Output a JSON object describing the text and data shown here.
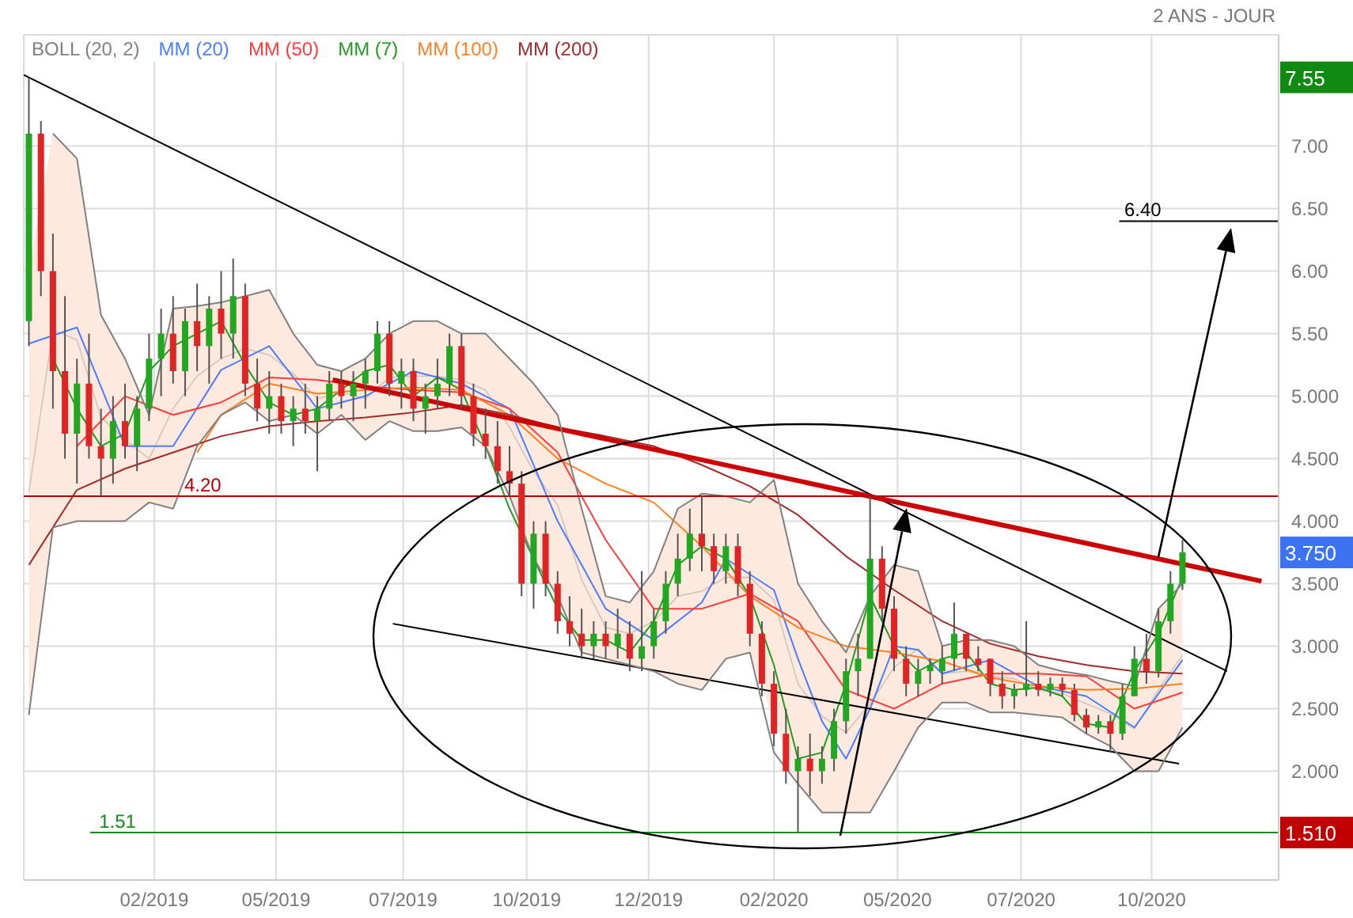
{
  "chart_data": {
    "type": "candlestick",
    "subtitle": "2 ANS - JOUR",
    "x": [
      "2018-12-17",
      "2018-12-24",
      "2018-12-31",
      "2019-01-07",
      "2019-01-14",
      "2019-01-21",
      "2019-01-28",
      "2019-02-04",
      "2019-02-11",
      "2019-02-18",
      "2019-02-25",
      "2019-03-04",
      "2019-03-11",
      "2019-03-18",
      "2019-03-25",
      "2019-04-01",
      "2019-04-08",
      "2019-04-15",
      "2019-04-22",
      "2019-04-29",
      "2019-05-06",
      "2019-05-13",
      "2019-05-20",
      "2019-05-27",
      "2019-06-03",
      "2019-06-10",
      "2019-06-17",
      "2019-06-24",
      "2019-07-01",
      "2019-07-08",
      "2019-07-15",
      "2019-07-22",
      "2019-07-29",
      "2019-08-05",
      "2019-08-12",
      "2019-08-19",
      "2019-08-26",
      "2019-09-02",
      "2019-09-09",
      "2019-09-16",
      "2019-09-23",
      "2019-09-30",
      "2019-10-07",
      "2019-10-14",
      "2019-10-21",
      "2019-10-28",
      "2019-11-04",
      "2019-11-11",
      "2019-11-18",
      "2019-11-25",
      "2019-12-02",
      "2019-12-09",
      "2019-12-16",
      "2019-12-23",
      "2019-12-30",
      "2020-01-06",
      "2020-01-13",
      "2020-01-20",
      "2020-01-27",
      "2020-02-03",
      "2020-02-10",
      "2020-02-17",
      "2020-02-24",
      "2020-03-02",
      "2020-03-09",
      "2020-03-16",
      "2020-03-23",
      "2020-03-30",
      "2020-04-06",
      "2020-04-13",
      "2020-04-20",
      "2020-04-27",
      "2020-05-04",
      "2020-05-11",
      "2020-05-18",
      "2020-05-25",
      "2020-06-01",
      "2020-06-08",
      "2020-06-15",
      "2020-06-22",
      "2020-06-29",
      "2020-07-06",
      "2020-07-13",
      "2020-07-20",
      "2020-07-27",
      "2020-08-03",
      "2020-08-10",
      "2020-08-17",
      "2020-08-24",
      "2020-08-31",
      "2020-09-07",
      "2020-09-14",
      "2020-09-21",
      "2020-09-28",
      "2020-10-05",
      "2020-10-12",
      "2020-10-19"
    ],
    "ohlc": [
      [
        5.6,
        7.55,
        5.4,
        7.1
      ],
      [
        7.1,
        7.2,
        5.8,
        6.0
      ],
      [
        6.0,
        6.3,
        4.9,
        5.2
      ],
      [
        5.2,
        5.8,
        4.5,
        4.7
      ],
      [
        4.7,
        5.3,
        4.3,
        5.1
      ],
      [
        5.1,
        5.5,
        4.5,
        4.6
      ],
      [
        4.6,
        4.9,
        4.2,
        4.5
      ],
      [
        4.5,
        5.0,
        4.3,
        4.8
      ],
      [
        4.8,
        5.1,
        4.5,
        4.6
      ],
      [
        4.6,
        5.0,
        4.4,
        4.9
      ],
      [
        4.9,
        5.5,
        4.8,
        5.3
      ],
      [
        5.3,
        5.7,
        5.0,
        5.5
      ],
      [
        5.5,
        5.8,
        5.1,
        5.2
      ],
      [
        5.2,
        5.7,
        5.0,
        5.6
      ],
      [
        5.6,
        5.9,
        5.2,
        5.4
      ],
      [
        5.4,
        5.8,
        5.1,
        5.7
      ],
      [
        5.7,
        6.0,
        5.3,
        5.5
      ],
      [
        5.5,
        6.1,
        5.3,
        5.8
      ],
      [
        5.8,
        5.9,
        5.0,
        5.1
      ],
      [
        5.1,
        5.3,
        4.8,
        4.9
      ],
      [
        4.9,
        5.2,
        4.7,
        5.0
      ],
      [
        5.0,
        5.1,
        4.7,
        4.8
      ],
      [
        4.8,
        5.0,
        4.6,
        4.9
      ],
      [
        4.9,
        5.1,
        4.7,
        4.8
      ],
      [
        4.8,
        5.0,
        4.4,
        4.9
      ],
      [
        4.9,
        5.2,
        4.8,
        5.1
      ],
      [
        5.1,
        5.2,
        4.9,
        5.0
      ],
      [
        5.0,
        5.2,
        4.8,
        5.1
      ],
      [
        5.1,
        5.3,
        4.9,
        5.2
      ],
      [
        5.2,
        5.6,
        5.1,
        5.5
      ],
      [
        5.5,
        5.6,
        5.0,
        5.1
      ],
      [
        5.1,
        5.3,
        4.9,
        5.2
      ],
      [
        5.2,
        5.3,
        4.8,
        4.9
      ],
      [
        4.9,
        5.1,
        4.7,
        5.0
      ],
      [
        5.0,
        5.3,
        4.9,
        5.1
      ],
      [
        5.1,
        5.5,
        5.0,
        5.4
      ],
      [
        5.4,
        5.5,
        4.9,
        5.0
      ],
      [
        5.0,
        5.1,
        4.6,
        4.7
      ],
      [
        4.7,
        4.9,
        4.5,
        4.6
      ],
      [
        4.6,
        4.8,
        4.3,
        4.4
      ],
      [
        4.4,
        4.6,
        4.2,
        4.3
      ],
      [
        4.3,
        4.4,
        3.4,
        3.5
      ],
      [
        3.5,
        4.0,
        3.3,
        3.9
      ],
      [
        3.9,
        4.0,
        3.4,
        3.5
      ],
      [
        3.5,
        3.6,
        3.1,
        3.2
      ],
      [
        3.2,
        3.4,
        3.0,
        3.1
      ],
      [
        3.1,
        3.3,
        2.9,
        3.0
      ],
      [
        3.0,
        3.2,
        2.9,
        3.1
      ],
      [
        3.1,
        3.2,
        2.9,
        3.0
      ],
      [
        3.0,
        3.3,
        2.9,
        3.1
      ],
      [
        3.1,
        3.2,
        2.8,
        2.9
      ],
      [
        2.9,
        3.6,
        2.8,
        3.0
      ],
      [
        3.0,
        3.3,
        2.9,
        3.2
      ],
      [
        3.2,
        3.6,
        3.1,
        3.5
      ],
      [
        3.5,
        3.9,
        3.4,
        3.7
      ],
      [
        3.7,
        4.1,
        3.6,
        3.9
      ],
      [
        3.9,
        4.2,
        3.6,
        3.8
      ],
      [
        3.8,
        3.9,
        3.5,
        3.6
      ],
      [
        3.6,
        3.9,
        3.5,
        3.8
      ],
      [
        3.8,
        3.9,
        3.4,
        3.5
      ],
      [
        3.5,
        3.6,
        3.0,
        3.1
      ],
      [
        3.1,
        3.2,
        2.6,
        2.7
      ],
      [
        2.7,
        2.8,
        2.2,
        2.3
      ],
      [
        2.3,
        2.5,
        1.9,
        2.0
      ],
      [
        2.0,
        2.2,
        1.51,
        2.1
      ],
      [
        2.1,
        2.3,
        1.8,
        2.0
      ],
      [
        2.0,
        2.2,
        1.9,
        2.1
      ],
      [
        2.1,
        2.5,
        2.0,
        2.4
      ],
      [
        2.4,
        2.9,
        2.3,
        2.8
      ],
      [
        2.8,
        3.1,
        2.6,
        2.9
      ],
      [
        2.9,
        4.2,
        2.9,
        3.7
      ],
      [
        3.7,
        3.8,
        3.2,
        3.3
      ],
      [
        3.3,
        3.4,
        2.8,
        2.9
      ],
      [
        2.9,
        3.0,
        2.6,
        2.7
      ],
      [
        2.7,
        2.9,
        2.6,
        2.8
      ],
      [
        2.8,
        2.9,
        2.7,
        2.85
      ],
      [
        2.8,
        3.0,
        2.7,
        2.9
      ],
      [
        2.9,
        3.35,
        2.8,
        3.1
      ],
      [
        3.1,
        3.1,
        2.8,
        2.9
      ],
      [
        2.9,
        3.0,
        2.8,
        2.85
      ],
      [
        2.9,
        2.9,
        2.6,
        2.7
      ],
      [
        2.7,
        2.8,
        2.5,
        2.6
      ],
      [
        2.6,
        2.7,
        2.5,
        2.65
      ],
      [
        2.65,
        3.2,
        2.6,
        2.7
      ],
      [
        2.7,
        2.8,
        2.6,
        2.65
      ],
      [
        2.65,
        2.75,
        2.6,
        2.7
      ],
      [
        2.7,
        2.75,
        2.6,
        2.65
      ],
      [
        2.65,
        2.7,
        2.4,
        2.45
      ],
      [
        2.45,
        2.5,
        2.3,
        2.35
      ],
      [
        2.35,
        2.45,
        2.3,
        2.4
      ],
      [
        2.4,
        2.45,
        2.15,
        2.3
      ],
      [
        2.3,
        2.7,
        2.25,
        2.6
      ],
      [
        2.6,
        3.0,
        2.6,
        2.9
      ],
      [
        2.9,
        3.1,
        2.7,
        2.8
      ],
      [
        2.8,
        3.3,
        2.75,
        3.2
      ],
      [
        3.2,
        3.6,
        3.1,
        3.5
      ],
      [
        3.5,
        3.85,
        3.45,
        3.75
      ]
    ],
    "colors": [
      "#22a722",
      "#e02424",
      "#e02424",
      "#e02424",
      "#22a722",
      "#e02424",
      "#e02424",
      "#22a722",
      "#e02424",
      "#22a722",
      "#22a722",
      "#22a722",
      "#e02424",
      "#22a722",
      "#e02424",
      "#22a722",
      "#e02424",
      "#22a722",
      "#e02424",
      "#e02424",
      "#22a722",
      "#e02424",
      "#22a722",
      "#e02424",
      "#22a722",
      "#22a722",
      "#e02424",
      "#22a722",
      "#22a722",
      "#22a722",
      "#e02424",
      "#22a722",
      "#e02424",
      "#22a722",
      "#22a722",
      "#22a722",
      "#e02424",
      "#e02424",
      "#e02424",
      "#e02424",
      "#e02424",
      "#e02424",
      "#22a722",
      "#e02424",
      "#e02424",
      "#e02424",
      "#e02424",
      "#22a722",
      "#e02424",
      "#22a722",
      "#e02424",
      "#22a722",
      "#22a722",
      "#22a722",
      "#22a722",
      "#22a722",
      "#e02424",
      "#e02424",
      "#22a722",
      "#e02424",
      "#e02424",
      "#e02424",
      "#e02424",
      "#e02424",
      "#22a722",
      "#e02424",
      "#22a722",
      "#22a722",
      "#22a722",
      "#22a722",
      "#22a722",
      "#e02424",
      "#e02424",
      "#e02424",
      "#22a722",
      "#22a722",
      "#22a722",
      "#22a722",
      "#e02424",
      "#e02424",
      "#e02424",
      "#e02424",
      "#22a722",
      "#22a722",
      "#e02424",
      "#22a722",
      "#e02424",
      "#e02424",
      "#e02424",
      "#22a722",
      "#e02424",
      "#22a722",
      "#22a722",
      "#e02424",
      "#22a722",
      "#22a722",
      "#22a722"
    ],
    "series": [
      {
        "name": "BOLL (20, 2)",
        "type": "line",
        "color": "#808080",
        "x": [
          "2018-12-17",
          "2018-12-31",
          "2019-01-14",
          "2019-01-28",
          "2019-02-11",
          "2019-02-25",
          "2019-03-11",
          "2019-03-25",
          "2019-04-08",
          "2019-04-22",
          "2019-05-06",
          "2019-05-20",
          "2019-06-03",
          "2019-06-17",
          "2019-07-01",
          "2019-07-15",
          "2019-07-29",
          "2019-08-12",
          "2019-08-26",
          "2019-09-09",
          "2019-09-23",
          "2019-10-07",
          "2019-10-21",
          "2019-11-04",
          "2019-11-18",
          "2019-12-02",
          "2019-12-16",
          "2019-12-30",
          "2020-01-13",
          "2020-01-27",
          "2020-02-10",
          "2020-02-24",
          "2020-03-09",
          "2020-03-23",
          "2020-04-06",
          "2020-04-20",
          "2020-05-04",
          "2020-05-18",
          "2020-06-01",
          "2020-06-15",
          "2020-06-29",
          "2020-07-13",
          "2020-07-27",
          "2020-08-10",
          "2020-08-24",
          "2020-09-07",
          "2020-09-21",
          "2020-10-05",
          "2020-10-19"
        ],
        "values": [
          4.23,
          5.53,
          5.45,
          4.83,
          4.65,
          4.5,
          4.9,
          5.16,
          5.3,
          5.38,
          5.33,
          5.18,
          4.98,
          5.03,
          4.98,
          5.15,
          5.16,
          5.16,
          5.13,
          5.05,
          4.75,
          4.4,
          4.13,
          3.53,
          3.15,
          3.1,
          3.2,
          3.4,
          3.44,
          3.55,
          3.55,
          3.37,
          2.7,
          2.44,
          2.31,
          2.54,
          2.83,
          2.98,
          2.78,
          2.8,
          2.76,
          2.74,
          2.65,
          2.62,
          2.54,
          2.46,
          2.34,
          2.65,
          2.93
        ],
        "lower": [
          2.45,
          3.95,
          4.0,
          4.0,
          4.0,
          4.15,
          4.1,
          4.6,
          4.85,
          4.95,
          4.8,
          4.85,
          4.7,
          4.85,
          4.65,
          4.8,
          4.72,
          4.72,
          4.75,
          4.6,
          4.2,
          3.7,
          3.4,
          2.95,
          2.9,
          2.85,
          2.8,
          2.7,
          2.65,
          2.9,
          2.95,
          2.4,
          1.9,
          1.67,
          1.67,
          1.67,
          2.0,
          2.35,
          2.55,
          2.55,
          2.47,
          2.47,
          2.45,
          2.43,
          2.3,
          2.2,
          2.0,
          2.0,
          2.35
        ],
        "upper": [
          6.0,
          7.1,
          6.9,
          5.65,
          5.3,
          4.85,
          5.7,
          5.72,
          5.75,
          5.8,
          5.85,
          5.5,
          5.25,
          5.2,
          5.3,
          5.5,
          5.6,
          5.6,
          5.5,
          5.5,
          5.3,
          5.1,
          4.85,
          4.1,
          3.4,
          3.35,
          3.6,
          4.1,
          4.22,
          4.2,
          4.15,
          4.33,
          3.5,
          3.2,
          2.95,
          3.4,
          3.65,
          3.6,
          3.0,
          3.05,
          3.05,
          3.0,
          2.85,
          2.8,
          2.77,
          2.72,
          2.68,
          3.3,
          3.5
        ]
      },
      {
        "name": "MM (20)",
        "type": "line",
        "color": "#4a7dff",
        "x": [
          "2018-12-17",
          "2019-01-14",
          "2019-02-11",
          "2019-03-11",
          "2019-04-08",
          "2019-05-06",
          "2019-06-03",
          "2019-07-01",
          "2019-07-29",
          "2019-08-26",
          "2019-09-23",
          "2019-10-21",
          "2019-11-18",
          "2019-12-16",
          "2020-01-13",
          "2020-01-27",
          "2020-02-24",
          "2020-03-09",
          "2020-03-23",
          "2020-04-06",
          "2020-04-20",
          "2020-05-04",
          "2020-05-18",
          "2020-06-01",
          "2020-06-29",
          "2020-07-27",
          "2020-08-24",
          "2020-09-21",
          "2020-10-19"
        ],
        "values": [
          5.42,
          5.55,
          4.6,
          4.6,
          5.21,
          5.4,
          4.9,
          5.0,
          5.2,
          5.1,
          4.9,
          4.0,
          3.3,
          3.05,
          3.35,
          3.7,
          3.45,
          2.9,
          2.4,
          2.1,
          2.5,
          3.0,
          2.97,
          2.78,
          2.89,
          2.68,
          2.6,
          2.35,
          2.89
        ]
      },
      {
        "name": "MM (50)",
        "type": "line",
        "color": "#ff3b3b",
        "x": [
          "2019-01-14",
          "2019-02-11",
          "2019-03-11",
          "2019-04-08",
          "2019-05-06",
          "2019-06-03",
          "2019-07-01",
          "2019-07-29",
          "2019-08-26",
          "2019-09-23",
          "2019-10-21",
          "2019-11-18",
          "2019-12-16",
          "2020-01-13",
          "2020-02-10",
          "2020-03-09",
          "2020-04-06",
          "2020-05-04",
          "2020-06-01",
          "2020-06-29",
          "2020-07-27",
          "2020-08-24",
          "2020-09-21",
          "2020-10-19"
        ],
        "values": [
          4.6,
          5.0,
          4.85,
          4.95,
          5.15,
          5.13,
          5.08,
          5.05,
          5.03,
          4.9,
          4.55,
          3.85,
          3.3,
          3.3,
          3.42,
          3.2,
          2.65,
          2.5,
          2.7,
          2.78,
          2.78,
          2.76,
          2.5,
          2.63
        ]
      },
      {
        "name": "MM (7)",
        "type": "line",
        "color": "#1e9e1e",
        "x": [
          "2018-12-31",
          "2019-01-14",
          "2019-01-28",
          "2019-02-11",
          "2019-02-25",
          "2019-03-11",
          "2019-03-25",
          "2019-04-08",
          "2019-04-22",
          "2019-05-06",
          "2019-05-20",
          "2019-06-03",
          "2019-06-17",
          "2019-07-01",
          "2019-07-15",
          "2019-07-29",
          "2019-08-12",
          "2019-08-26",
          "2019-09-09",
          "2019-09-23",
          "2019-10-07",
          "2019-10-21",
          "2019-11-04",
          "2019-11-18",
          "2019-12-02",
          "2019-12-16",
          "2019-12-30",
          "2020-01-13",
          "2020-01-27",
          "2020-02-10",
          "2020-02-24",
          "2020-03-09",
          "2020-03-23",
          "2020-04-06",
          "2020-04-20",
          "2020-05-04",
          "2020-05-18",
          "2020-06-01",
          "2020-06-15",
          "2020-06-29",
          "2020-07-13",
          "2020-07-27",
          "2020-08-10",
          "2020-08-24",
          "2020-09-07",
          "2020-09-21",
          "2020-10-05",
          "2020-10-19"
        ],
        "values": [
          5.3,
          4.9,
          4.6,
          4.7,
          5.2,
          5.4,
          5.5,
          5.6,
          5.25,
          4.95,
          4.85,
          4.9,
          5.05,
          5.2,
          5.25,
          5.0,
          5.15,
          5.05,
          4.6,
          4.1,
          3.7,
          3.3,
          3.05,
          3.05,
          2.95,
          3.2,
          3.65,
          3.8,
          3.7,
          3.4,
          2.85,
          2.1,
          2.15,
          2.7,
          3.4,
          3.0,
          2.8,
          2.9,
          2.95,
          2.7,
          2.65,
          2.67,
          2.6,
          2.38,
          2.35,
          2.8,
          3.1,
          3.55
        ]
      },
      {
        "name": "MM (100)",
        "type": "line",
        "color": "#ff7f1e",
        "x": [
          "2019-03-25",
          "2019-04-08",
          "2019-05-06",
          "2019-06-03",
          "2019-07-01",
          "2019-07-29",
          "2019-08-26",
          "2019-09-23",
          "2019-10-21",
          "2019-11-18",
          "2019-12-16",
          "2020-01-13",
          "2020-02-10",
          "2020-03-09",
          "2020-04-06",
          "2020-05-04",
          "2020-06-01",
          "2020-06-29",
          "2020-07-27",
          "2020-08-24",
          "2020-09-21",
          "2020-10-19"
        ],
        "values": [
          4.55,
          4.85,
          5.1,
          5.02,
          5.05,
          5.07,
          5.05,
          4.85,
          4.5,
          4.3,
          4.15,
          3.8,
          3.4,
          3.15,
          3.0,
          2.95,
          2.88,
          2.75,
          2.68,
          2.65,
          2.66,
          2.7
        ]
      },
      {
        "name": "MM (200)",
        "type": "line",
        "color": "#a52a2a",
        "x": [
          "2018-12-17",
          "2019-01-14",
          "2019-02-11",
          "2019-03-11",
          "2019-04-08",
          "2019-05-06",
          "2019-06-03",
          "2019-07-01",
          "2019-07-29",
          "2019-08-26",
          "2019-09-23",
          "2019-10-21",
          "2019-11-18",
          "2019-12-16",
          "2020-01-13",
          "2020-02-10",
          "2020-03-09",
          "2020-04-06",
          "2020-05-04",
          "2020-06-01",
          "2020-06-29",
          "2020-07-27",
          "2020-08-24",
          "2020-09-21",
          "2020-10-19"
        ],
        "values": [
          3.65,
          4.25,
          4.42,
          4.55,
          4.68,
          4.76,
          4.8,
          4.83,
          4.87,
          4.93,
          4.85,
          4.75,
          4.68,
          4.6,
          4.45,
          4.28,
          4.05,
          3.72,
          3.45,
          3.2,
          3.02,
          2.92,
          2.85,
          2.8,
          2.78
        ]
      },
      {
        "type": "line",
        "color": "#000000",
        "x": [
          "2018-12-14",
          "2020-11-14"
        ],
        "values": [
          7.57,
          2.8
        ]
      },
      {
        "type": "line",
        "color": "#000000",
        "x": [
          "2019-07-17",
          "2020-10-17"
        ],
        "values": [
          3.18,
          2.06
        ]
      },
      {
        "type": "line",
        "color": "#cc0000",
        "x": [
          "2019-06-12",
          "2020-12-04"
        ],
        "values": [
          5.13,
          3.52
        ]
      },
      {
        "type": "line",
        "color": "#808080",
        "x": [
          "2018-12-17",
          "2018-12-31",
          "2019-01-14",
          "2019-01-28",
          "2019-02-11",
          "2019-02-25",
          "2019-03-11",
          "2019-03-25",
          "2019-04-08",
          "2019-04-22",
          "2019-05-06",
          "2019-05-20",
          "2019-06-03",
          "2019-06-17",
          "2019-07-01",
          "2019-07-15",
          "2019-07-29",
          "2019-08-12",
          "2019-08-26",
          "2019-09-09",
          "2019-09-23",
          "2019-10-07",
          "2019-10-21",
          "2019-11-04",
          "2019-11-18",
          "2019-12-02",
          "2019-12-16",
          "2019-12-30",
          "2020-01-13",
          "2020-01-27",
          "2020-02-10",
          "2020-02-24",
          "2020-03-09",
          "2020-03-23",
          "2020-04-06",
          "2020-04-20",
          "2020-05-04",
          "2020-05-18",
          "2020-06-01",
          "2020-06-15",
          "2020-06-29",
          "2020-07-13",
          "2020-07-27",
          "2020-08-10",
          "2020-08-24",
          "2020-09-07",
          "2020-09-21",
          "2020-10-05",
          "2020-10-19"
        ],
        "values": [
          2.45,
          3.95,
          4.0,
          4.0,
          4.0,
          4.15,
          4.1,
          4.6,
          4.85,
          4.95,
          4.8,
          4.85,
          4.7,
          4.85,
          4.65,
          4.8,
          4.72,
          4.72,
          4.75,
          4.6,
          4.2,
          3.7,
          3.4,
          2.95,
          2.9,
          2.85,
          2.8,
          2.7,
          2.65,
          2.9,
          2.95,
          2.15,
          1.9,
          1.67,
          1.67,
          1.67,
          2.0,
          2.35,
          2.55,
          2.55,
          2.47,
          2.47,
          2.45,
          2.43,
          2.3,
          2.2,
          2.0,
          2.0,
          2.35
        ]
      },
      {
        "type": "line",
        "color": "#808080",
        "x": [
          "2018-12-31",
          "2019-01-14",
          "2019-01-28",
          "2019-02-11",
          "2019-02-25",
          "2019-03-11",
          "2019-03-25",
          "2019-04-08",
          "2019-04-22",
          "2019-05-06",
          "2019-05-20",
          "2019-06-03",
          "2019-06-17",
          "2019-07-01",
          "2019-07-15",
          "2019-07-29",
          "2019-08-12",
          "2019-08-26",
          "2019-09-09",
          "2019-09-23",
          "2019-10-07",
          "2019-10-21",
          "2019-11-04",
          "2019-11-18",
          "2019-12-02",
          "2019-12-16",
          "2019-12-30",
          "2020-01-13",
          "2020-01-27",
          "2020-02-10",
          "2020-02-24",
          "2020-03-09",
          "2020-03-23",
          "2020-04-06",
          "2020-04-20",
          "2020-05-04",
          "2020-05-18",
          "2020-06-01",
          "2020-06-15",
          "2020-06-29",
          "2020-07-13",
          "2020-07-27",
          "2020-08-10",
          "2020-08-24",
          "2020-09-07",
          "2020-09-21",
          "2020-10-05",
          "2020-10-19"
        ],
        "values": [
          7.1,
          6.9,
          5.65,
          5.3,
          4.85,
          5.7,
          5.72,
          5.75,
          5.8,
          5.85,
          5.5,
          5.25,
          5.2,
          5.3,
          5.5,
          5.6,
          5.6,
          5.5,
          5.5,
          5.3,
          5.1,
          4.85,
          4.1,
          3.4,
          3.35,
          3.6,
          4.1,
          4.22,
          4.2,
          4.15,
          4.33,
          3.5,
          3.2,
          2.95,
          3.4,
          3.65,
          3.6,
          3.0,
          3.05,
          3.05,
          3.0,
          2.85,
          2.8,
          2.77,
          2.72,
          2.68,
          3.3,
          3.5
        ]
      }
    ],
    "xlim": [
      "2018-12-14",
      "2020-12-14"
    ],
    "xticks": [
      {
        "value": "2019-02-28",
        "label": "02/2019"
      },
      {
        "value": "2019-05-10",
        "label": "05/2019"
      },
      {
        "value": "2019-07-23",
        "label": "07/2019"
      },
      {
        "value": "2019-10-03",
        "label": "10/2019"
      },
      {
        "value": "2019-12-13",
        "label": "12/2019"
      },
      {
        "value": "2020-02-24",
        "label": "02/2020"
      },
      {
        "value": "2020-05-06",
        "label": "05/2020"
      },
      {
        "value": "2020-07-17",
        "label": "07/2020"
      },
      {
        "value": "2020-10-01",
        "label": "10/2020"
      }
    ],
    "ylim": [
      1.13,
      7.89
    ],
    "yticks": [
      {
        "value": 2,
        "label": "2.000"
      },
      {
        "value": 2.5,
        "label": "2.500"
      },
      {
        "value": 3,
        "label": "3.000"
      },
      {
        "value": 3.5,
        "label": "3.500"
      },
      {
        "value": 4,
        "label": "4.000"
      },
      {
        "value": 4.5,
        "label": "4.500"
      },
      {
        "value": 5,
        "label": "5.000"
      },
      {
        "value": 5.5,
        "label": "5.50"
      },
      {
        "value": 6,
        "label": "6.00"
      },
      {
        "value": 6.5,
        "label": "6.50"
      },
      {
        "value": 7,
        "label": "7.00"
      }
    ],
    "ref_lines": [
      {
        "axis": "y",
        "value": 4.2,
        "label": "4.20",
        "color": "#b00000"
      },
      {
        "axis": "y",
        "value": 1.51,
        "label": "1.51",
        "color": "#1a8a1a"
      },
      {
        "axis": "y",
        "value": 6.4,
        "label": "6.40",
        "color": "#000000"
      }
    ],
    "annotations": [
      "7.55",
      "3.750",
      "1.510"
    ],
    "grid": true,
    "legend": "top left"
  }
}
